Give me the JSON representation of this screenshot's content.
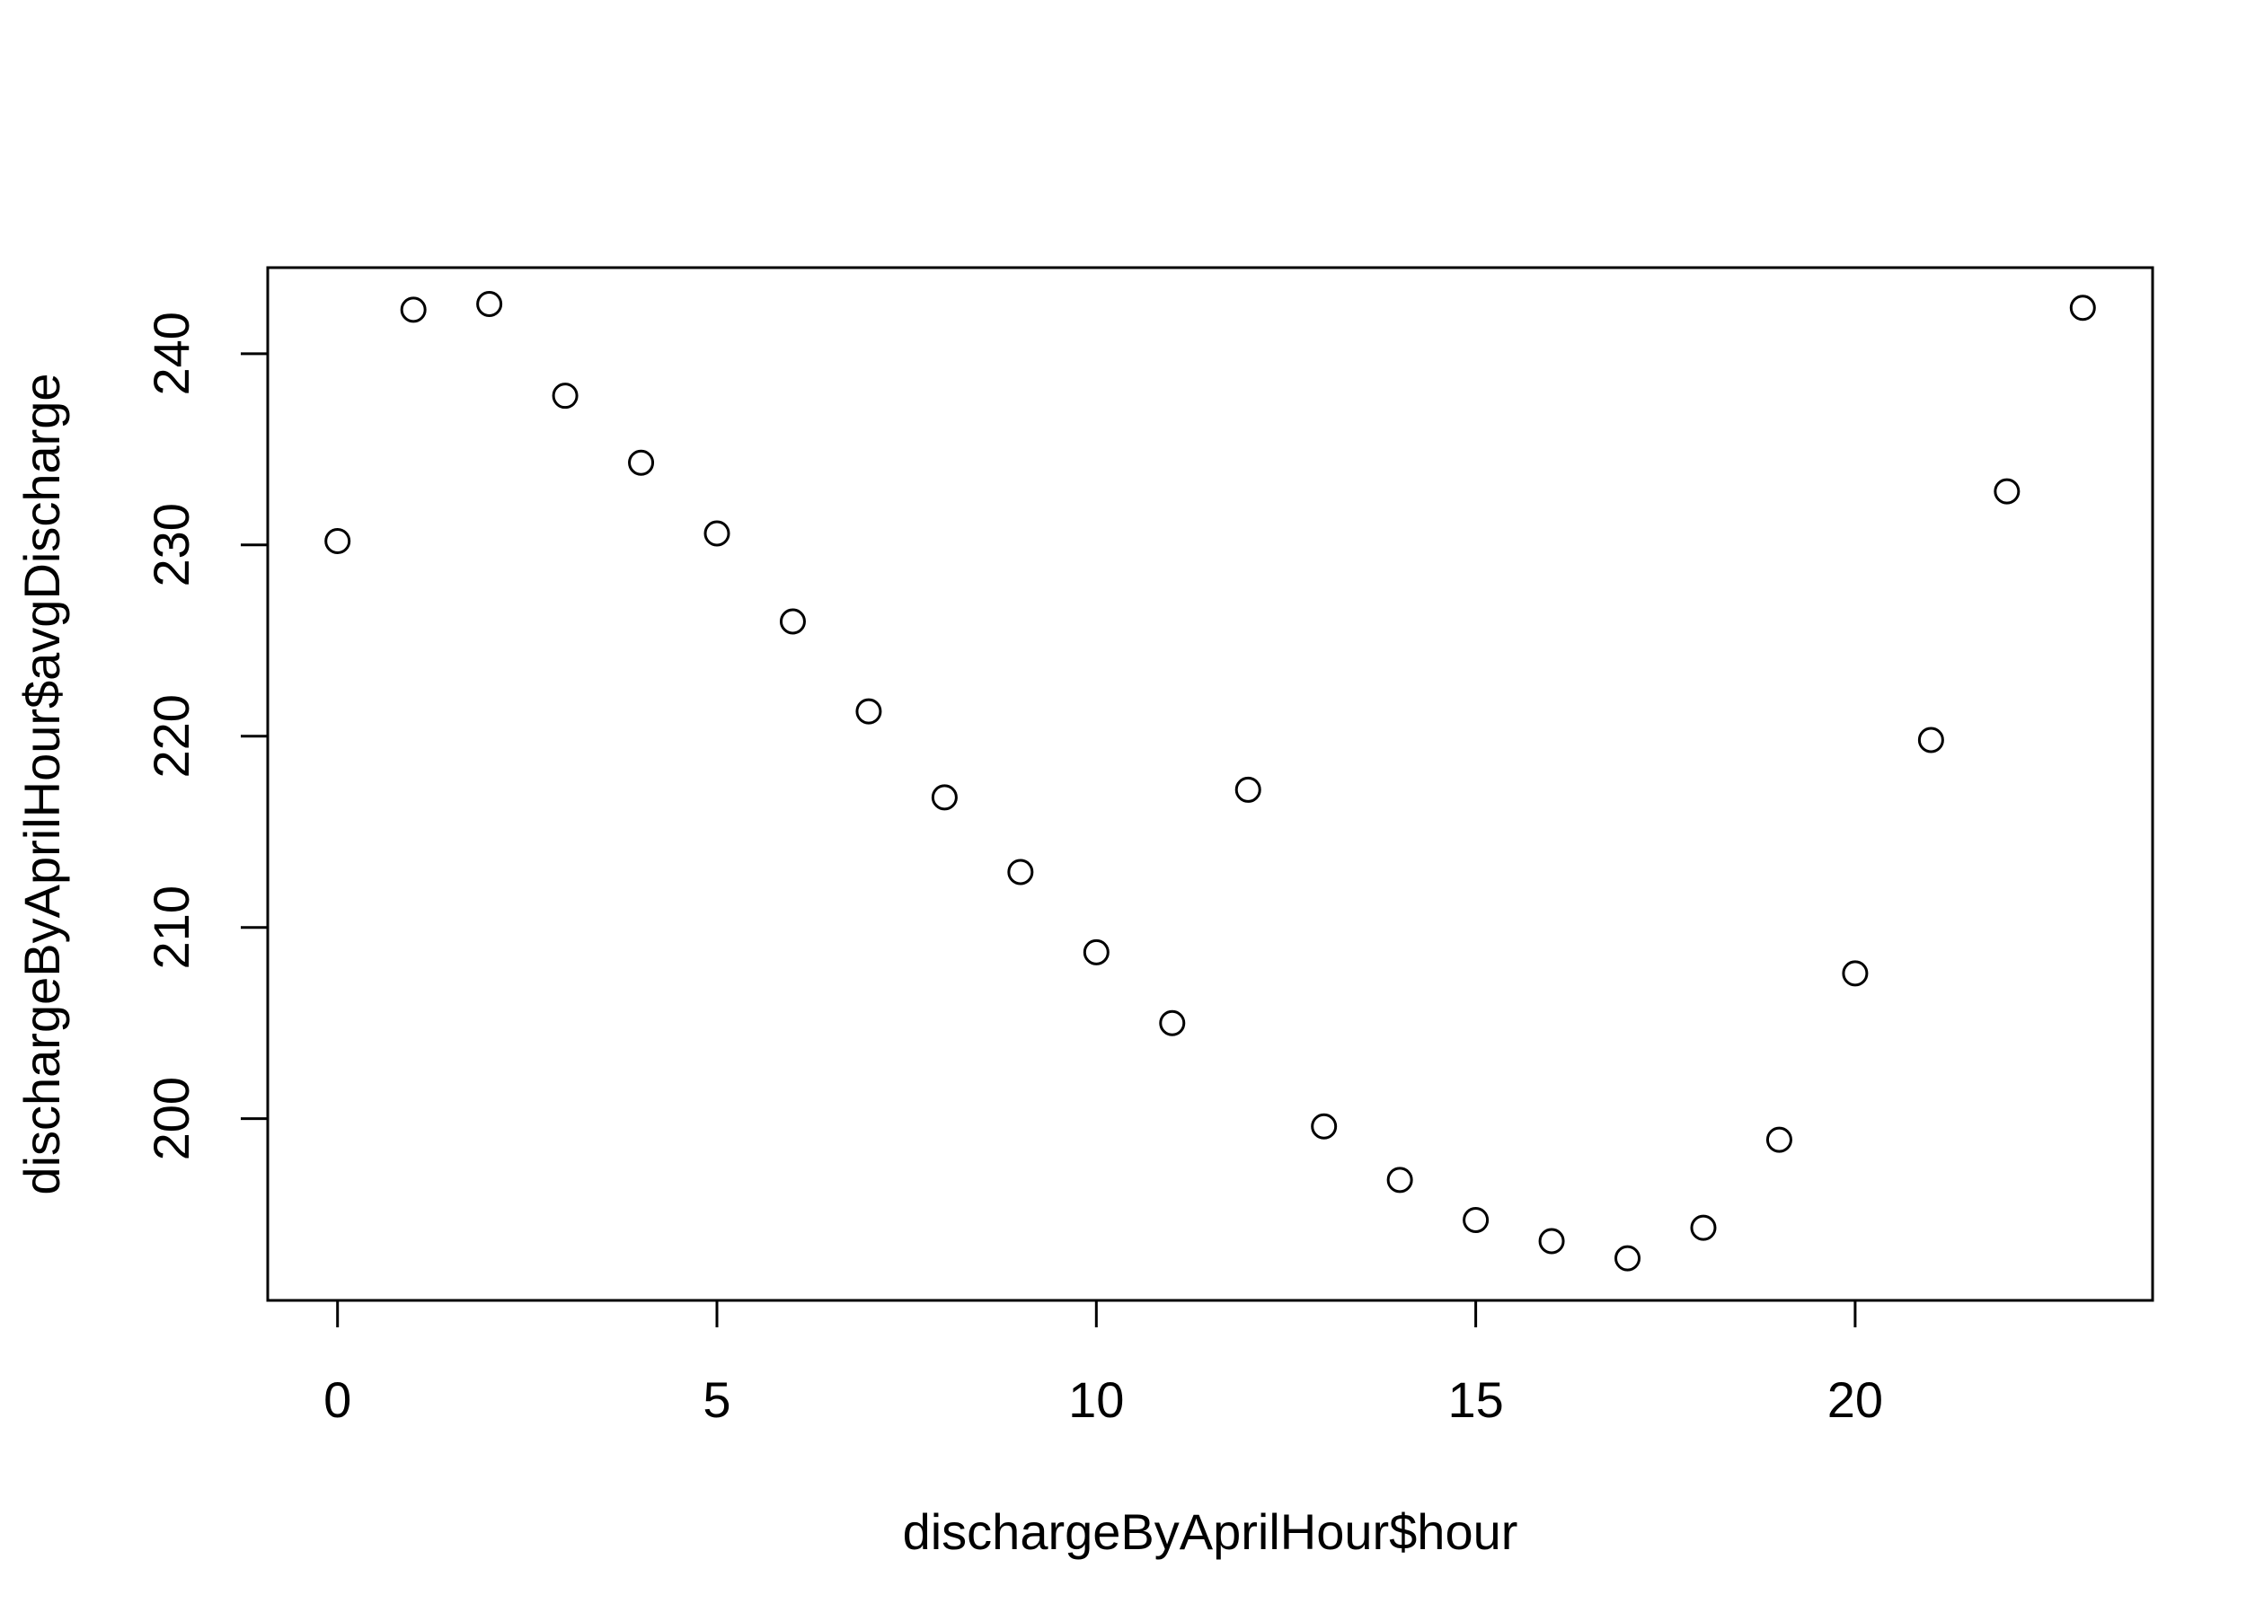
{
  "chart_data": {
    "type": "scatter",
    "title": "",
    "xlabel": "dischargeByAprilHour$hour",
    "ylabel": "dischargeByAprilHour$avgDischarge",
    "xlim": [
      -0.92,
      23.92
    ],
    "ylim": [
      190.5,
      244.5
    ],
    "xticks": [
      0,
      5,
      10,
      15,
      20
    ],
    "yticks": [
      200,
      210,
      220,
      230,
      240
    ],
    "grid": false,
    "marker": "open-circle",
    "series": [
      {
        "name": "avgDischarge",
        "x": [
          0,
          1,
          2,
          3,
          4,
          5,
          6,
          7,
          8,
          9,
          10,
          11,
          12,
          13,
          14,
          15,
          16,
          17,
          18,
          19,
          20,
          21,
          22,
          23
        ],
        "y": [
          230.2,
          242.3,
          242.6,
          237.8,
          234.3,
          230.6,
          226.0,
          221.3,
          216.8,
          212.9,
          208.7,
          205.0,
          217.2,
          199.6,
          196.8,
          194.7,
          193.6,
          192.7,
          194.3,
          198.9,
          207.6,
          219.8,
          232.8,
          242.4
        ]
      }
    ]
  }
}
